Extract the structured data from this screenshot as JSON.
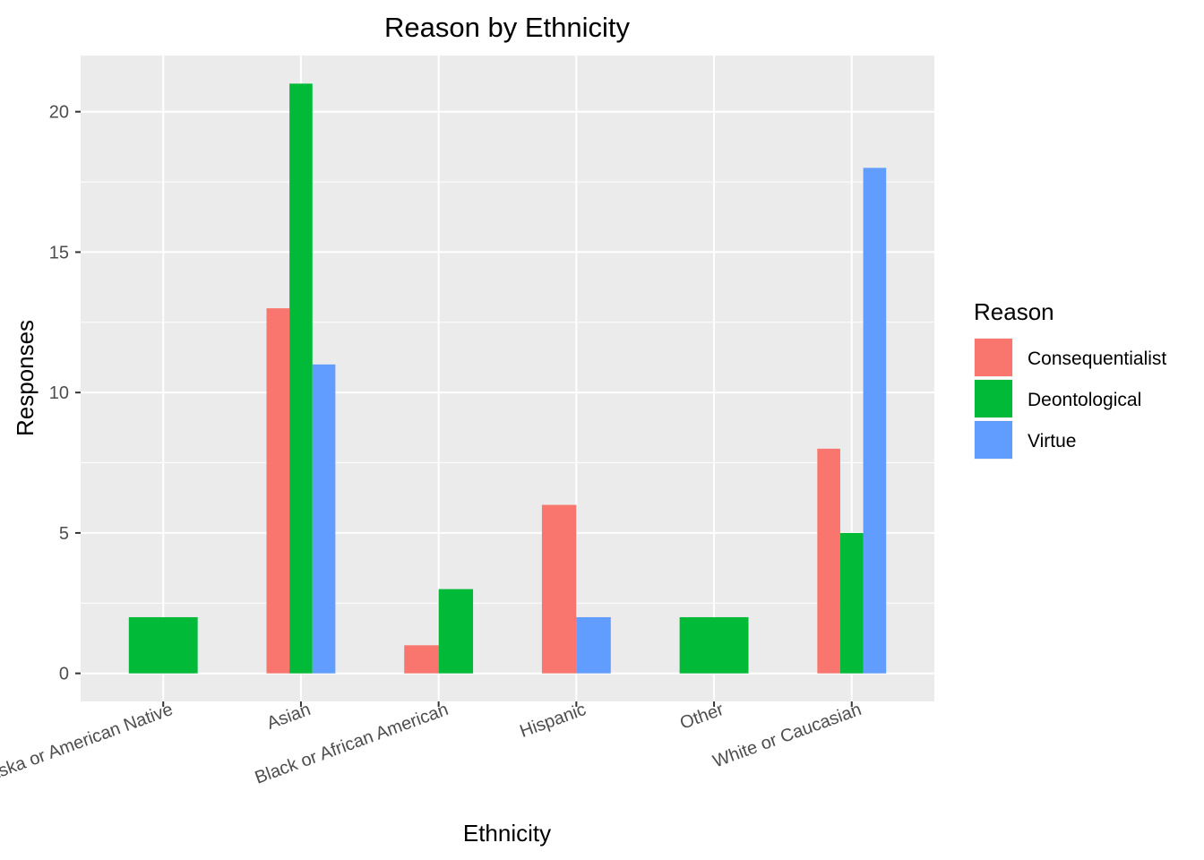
{
  "chart_data": {
    "type": "bar",
    "title": "Reason by Ethnicity",
    "xlabel": "Ethnicity",
    "ylabel": "Responses",
    "ylim": [
      -1,
      22
    ],
    "yticks": [
      0,
      5,
      10,
      15,
      20
    ],
    "grid": true,
    "legend_position": "right",
    "legend_title": "Reason",
    "categories": [
      "Alaska or American Native",
      "Asian",
      "Black or African American",
      "Hispanic",
      "Other",
      "White or Caucasian"
    ],
    "series": [
      {
        "name": "Consequentialist",
        "color": "#F8766D",
        "values": [
          null,
          13,
          1,
          6,
          null,
          8
        ]
      },
      {
        "name": "Deontological",
        "color": "#00BA38",
        "values": [
          2,
          21,
          3,
          null,
          2,
          5
        ]
      },
      {
        "name": "Virtue",
        "color": "#619CFF",
        "values": [
          null,
          11,
          null,
          2,
          null,
          18
        ]
      }
    ]
  }
}
